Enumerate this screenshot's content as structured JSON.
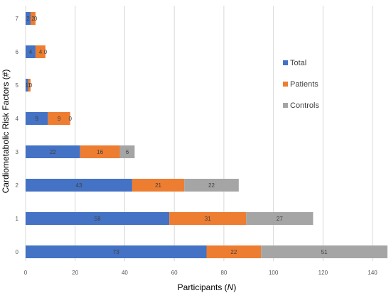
{
  "chart_data": {
    "type": "bar",
    "orientation": "horizontal",
    "stacked": true,
    "title": "",
    "ylabel": "Cardiometabolic Risk Factors (#)",
    "xlabel_parts": [
      "Participants (",
      "N",
      ")"
    ],
    "categories": [
      "0",
      "1",
      "2",
      "3",
      "4",
      "5",
      "6",
      "7"
    ],
    "xlim": [
      0,
      146
    ],
    "xticks": [
      0,
      20,
      40,
      60,
      80,
      100,
      120,
      140
    ],
    "grid": "vertical",
    "legend_position": "right",
    "series": [
      {
        "name": "Total",
        "color": "#4472C4",
        "values": [
          73,
          58,
          43,
          22,
          9,
          1,
          4,
          2
        ],
        "labels": [
          "73",
          "58",
          "43",
          "22",
          "9",
          "1",
          "4",
          "2"
        ]
      },
      {
        "name": "Patients",
        "color": "#ED7D31",
        "values": [
          22,
          31,
          21,
          16,
          9,
          1,
          4,
          2
        ],
        "labels": [
          "22",
          "31",
          "21",
          "16",
          "9",
          "1",
          "4",
          "2"
        ]
      },
      {
        "name": "Controls",
        "color": "#A5A5A5",
        "values": [
          51,
          27,
          22,
          6,
          0,
          0,
          0,
          0
        ],
        "labels": [
          "51",
          "27",
          "22",
          "6",
          "0",
          "0",
          "0",
          "0"
        ]
      }
    ]
  }
}
